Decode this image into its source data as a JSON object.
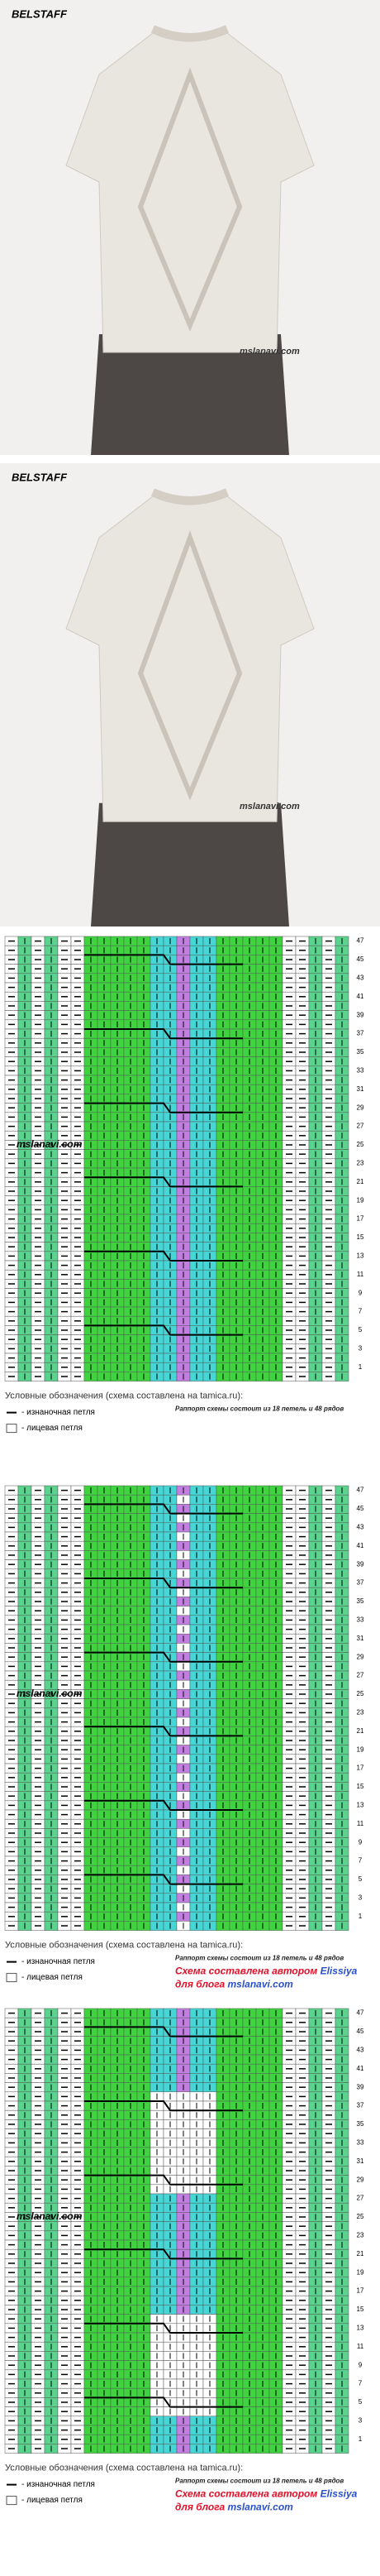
{
  "photos": [
    {
      "brand": "BELSTAFF",
      "watermark": "mslanavi.com"
    },
    {
      "brand": "BELSTAFF",
      "watermark": "mslanavi.com"
    }
  ],
  "charts": [
    {
      "row_labels": [
        47,
        45,
        43,
        41,
        39,
        37,
        35,
        33,
        31,
        29,
        27,
        25,
        23,
        21,
        19,
        17,
        15,
        13,
        11,
        9,
        7,
        5,
        3,
        1
      ],
      "watermark": "mslanavi.com",
      "legend_title": "Условные обозначения (схема составлена на tamica.ru):",
      "purl": "- изнаночная петля",
      "knit": "- лицевая петля",
      "repeat": "Раппорт схемы состоит из 18 петель и 48 рядов"
    },
    {
      "row_labels": [
        47,
        45,
        43,
        41,
        39,
        37,
        35,
        33,
        31,
        29,
        27,
        25,
        23,
        21,
        19,
        17,
        15,
        13,
        11,
        9,
        7,
        5,
        3,
        1
      ],
      "watermark": "mslanavi.com",
      "legend_title": "Условные обозначения (схема составлена на tamica.ru):",
      "purl": "- изнаночная петля",
      "knit": "- лицевая петля",
      "repeat": "Раппорт схемы состоит из 18 петель и 48 рядов",
      "credit": "Схема составлена автором",
      "author": "Elissiya",
      "credit2": "для блога",
      "site": "mslanavi.com"
    },
    {
      "row_labels": [
        47,
        45,
        43,
        41,
        39,
        37,
        35,
        33,
        31,
        29,
        27,
        25,
        23,
        21,
        19,
        17,
        15,
        13,
        11,
        9,
        7,
        5,
        3,
        1
      ],
      "watermark": "mslanavi.com",
      "legend_title": "Условные обозначения (схема составлена на tamica.ru):",
      "purl": "- изнаночная петля",
      "knit": "- лицевая петля",
      "repeat": "Раппорт схемы состоит из 18 петель и 48 рядов",
      "credit": "Схема составлена автором",
      "author": "Elissiya",
      "credit2": "для блога",
      "site": "mslanavi.com"
    }
  ]
}
